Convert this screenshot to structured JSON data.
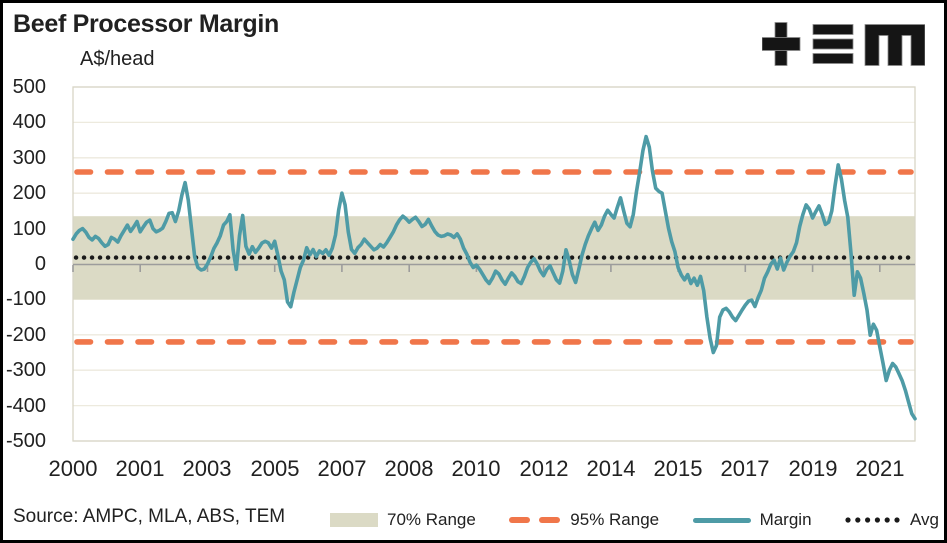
{
  "header": {
    "title": "Beef Processor Margin",
    "units_label": "A$/head",
    "logo_name": "TEM"
  },
  "source": "Source: AMPC, MLA, ABS, TEM",
  "colors": {
    "margin_line": "#4E9BA6",
    "range95": "#F0764A",
    "band70": "#DBDAC5",
    "avg_dots": "#1A1A1A",
    "gridline": "#EDEADE",
    "plot_border": "#D8D5C7",
    "axis": "#9C9C9C",
    "text": "#212121"
  },
  "chart_data": {
    "type": "line",
    "title": "Beef Processor Margin",
    "ylabel": "A$/head",
    "xlabel": "",
    "ylim": [
      -500,
      500
    ],
    "ytick_step": 100,
    "y_tick_labels": [
      "500",
      "400",
      "300",
      "200",
      "100",
      "0",
      "-100",
      "-200",
      "-300",
      "-400",
      "-500"
    ],
    "x_tick_labels": [
      "2000",
      "2001",
      "2003",
      "2005",
      "2007",
      "2008",
      "2010",
      "2012",
      "2014",
      "2015",
      "2017",
      "2019",
      "2021"
    ],
    "x_months_per_tick": 21,
    "x_frequency": "monthly",
    "x_start": "2000-01",
    "x_end": "2021-12",
    "grid": "horizontal",
    "legend_position": "bottom",
    "band_70_range": {
      "low": -100,
      "high": 135
    },
    "range_95": {
      "low": -220,
      "high": 260
    },
    "avg": 18,
    "legend": [
      {
        "label": "70% Range",
        "type": "band"
      },
      {
        "label": "95% Range",
        "type": "dashed"
      },
      {
        "label": "Margin",
        "type": "line"
      },
      {
        "label": "Avg",
        "type": "dotted"
      }
    ],
    "series": [
      {
        "name": "Margin",
        "values": [
          70,
          85,
          95,
          100,
          90,
          75,
          68,
          78,
          72,
          60,
          50,
          55,
          75,
          70,
          62,
          80,
          95,
          110,
          92,
          105,
          120,
          91,
          105,
          118,
          124,
          100,
          91,
          95,
          101,
          120,
          143,
          145,
          120,
          150,
          195,
          230,
          180,
          100,
          20,
          -10,
          -17,
          -14,
          0,
          20,
          44,
          60,
          80,
          110,
          120,
          139,
          40,
          -15,
          80,
          137,
          50,
          28,
          49,
          33,
          45,
          59,
          64,
          60,
          45,
          64,
          24,
          -20,
          -45,
          -107,
          -121,
          -80,
          -45,
          -10,
          11,
          46,
          26,
          41,
          21,
          37,
          30,
          40,
          25,
          45,
          82,
          153,
          200,
          167,
          90,
          41,
          30,
          46,
          55,
          70,
          60,
          50,
          40,
          45,
          55,
          48,
          60,
          75,
          90,
          110,
          125,
          135,
          128,
          118,
          126,
          132,
          120,
          106,
          112,
          126,
          108,
          92,
          82,
          78,
          80,
          85,
          82,
          75,
          85,
          70,
          45,
          28,
          5,
          -10,
          -3,
          -15,
          -30,
          -45,
          -55,
          -40,
          -20,
          -28,
          -45,
          -57,
          -40,
          -25,
          -35,
          -50,
          -55,
          -35,
          -10,
          5,
          15,
          0,
          -20,
          -33,
          -15,
          -5,
          -25,
          -45,
          -54,
          -20,
          40,
          10,
          -30,
          -52,
          -15,
          25,
          55,
          80,
          100,
          118,
          95,
          110,
          135,
          152,
          140,
          130,
          160,
          187,
          150,
          115,
          105,
          140,
          205,
          260,
          320,
          360,
          330,
          262,
          214,
          205,
          200,
          150,
          101,
          63,
          35,
          -10,
          -31,
          -45,
          -30,
          -55,
          -40,
          -60,
          -35,
          -75,
          -150,
          -210,
          -250,
          -230,
          -150,
          -130,
          -125,
          -135,
          -150,
          -160,
          -145,
          -130,
          -116,
          -105,
          -102,
          -120,
          -95,
          -74,
          -40,
          -22,
          0,
          11,
          -14,
          17,
          -17,
          5,
          22,
          35,
          60,
          106,
          140,
          167,
          155,
          130,
          148,
          164,
          140,
          112,
          118,
          150,
          220,
          280,
          240,
          180,
          132,
          30,
          -88,
          -22,
          -40,
          -83,
          -130,
          -201,
          -170,
          -187,
          -234,
          -280,
          -329,
          -300,
          -281,
          -291,
          -310,
          -330,
          -357,
          -390,
          -423,
          -437
        ]
      }
    ]
  }
}
